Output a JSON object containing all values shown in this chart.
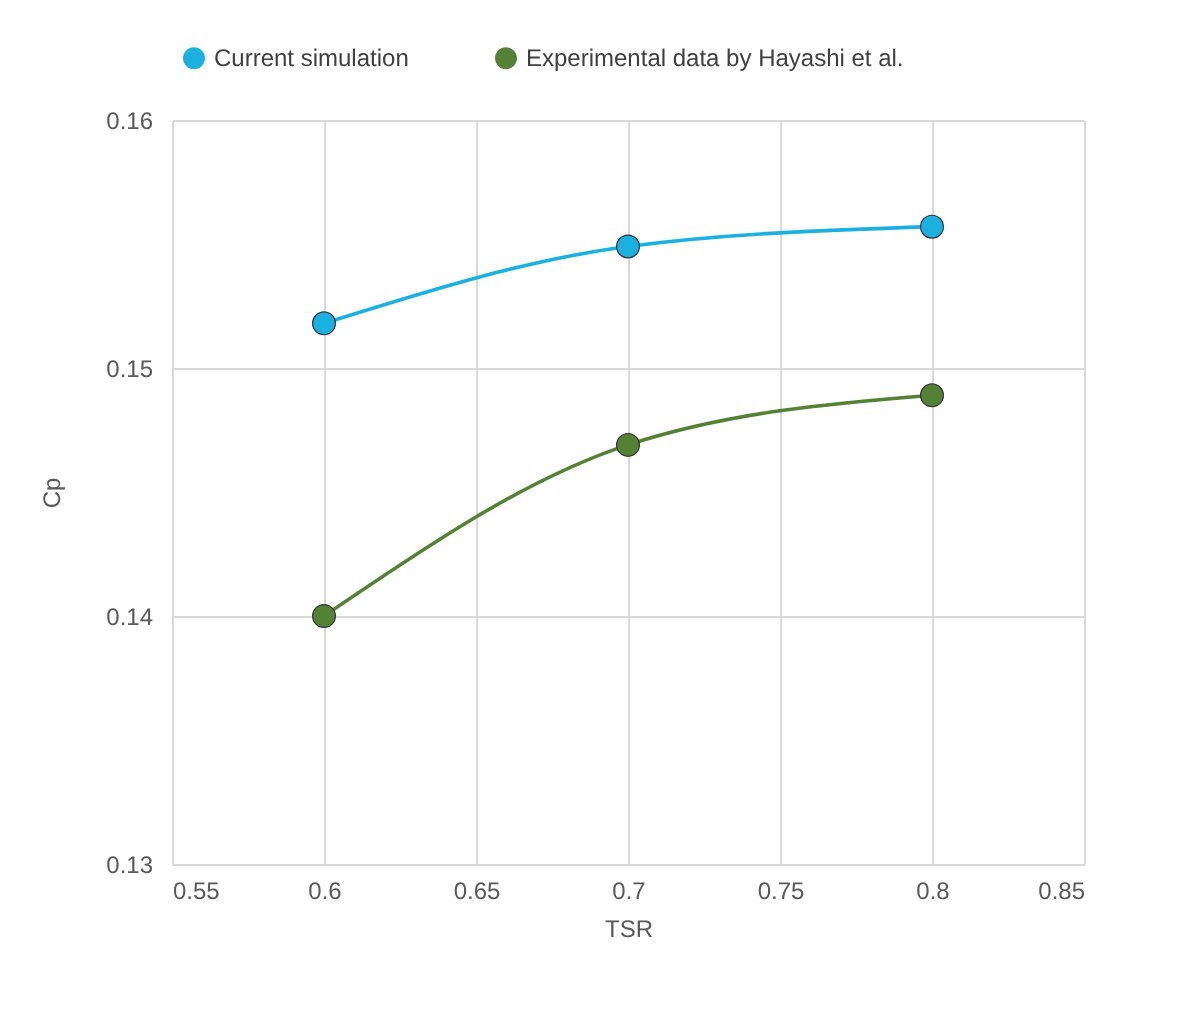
{
  "chart_data": {
    "type": "line",
    "xlabel": "TSR",
    "ylabel": "Cp",
    "x": [
      0.6,
      0.7,
      0.8
    ],
    "series": [
      {
        "name": "Current simulation",
        "color": "#1ab0e0",
        "values": [
          0.1518,
          0.1549,
          0.1557
        ]
      },
      {
        "name": "Experimental data by Hayashi et al.",
        "color": "#548235",
        "values": [
          0.14,
          0.1469,
          0.1489
        ]
      }
    ],
    "xlim": [
      0.55,
      0.85
    ],
    "xticks": [
      0.55,
      0.6,
      0.65,
      0.7,
      0.75,
      0.8,
      0.85
    ],
    "ylim": [
      0.13,
      0.16
    ],
    "yticks": [
      0.13,
      0.14,
      0.15,
      0.16
    ],
    "grid": true,
    "legend": "top",
    "marker": "circle",
    "line_style": "solid"
  }
}
